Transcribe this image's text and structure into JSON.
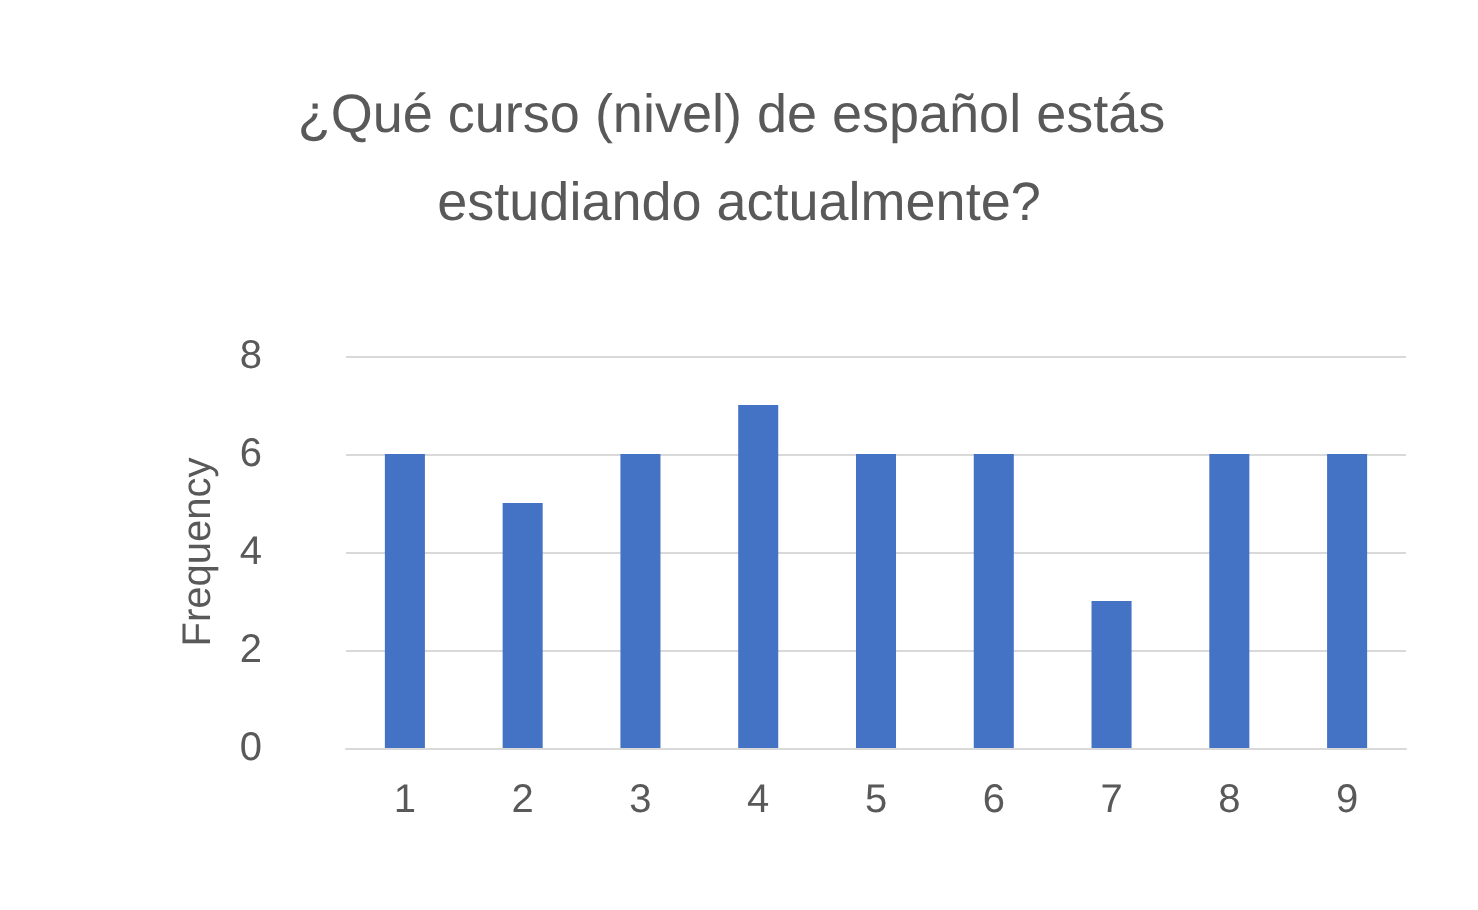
{
  "chart_data": {
    "type": "bar",
    "title": "¿Qué curso (nivel) de español estás estudiando actualmente?",
    "ylabel": "Frequency",
    "categories": [
      "1",
      "2",
      "3",
      "4",
      "5",
      "6",
      "7",
      "8",
      "9"
    ],
    "values": [
      6,
      5,
      6,
      7,
      6,
      6,
      3,
      6,
      6
    ],
    "color": "#4472c4",
    "ylim": [
      0,
      8
    ],
    "yticks": [
      0,
      2,
      4,
      6,
      8
    ],
    "grid": "y"
  }
}
